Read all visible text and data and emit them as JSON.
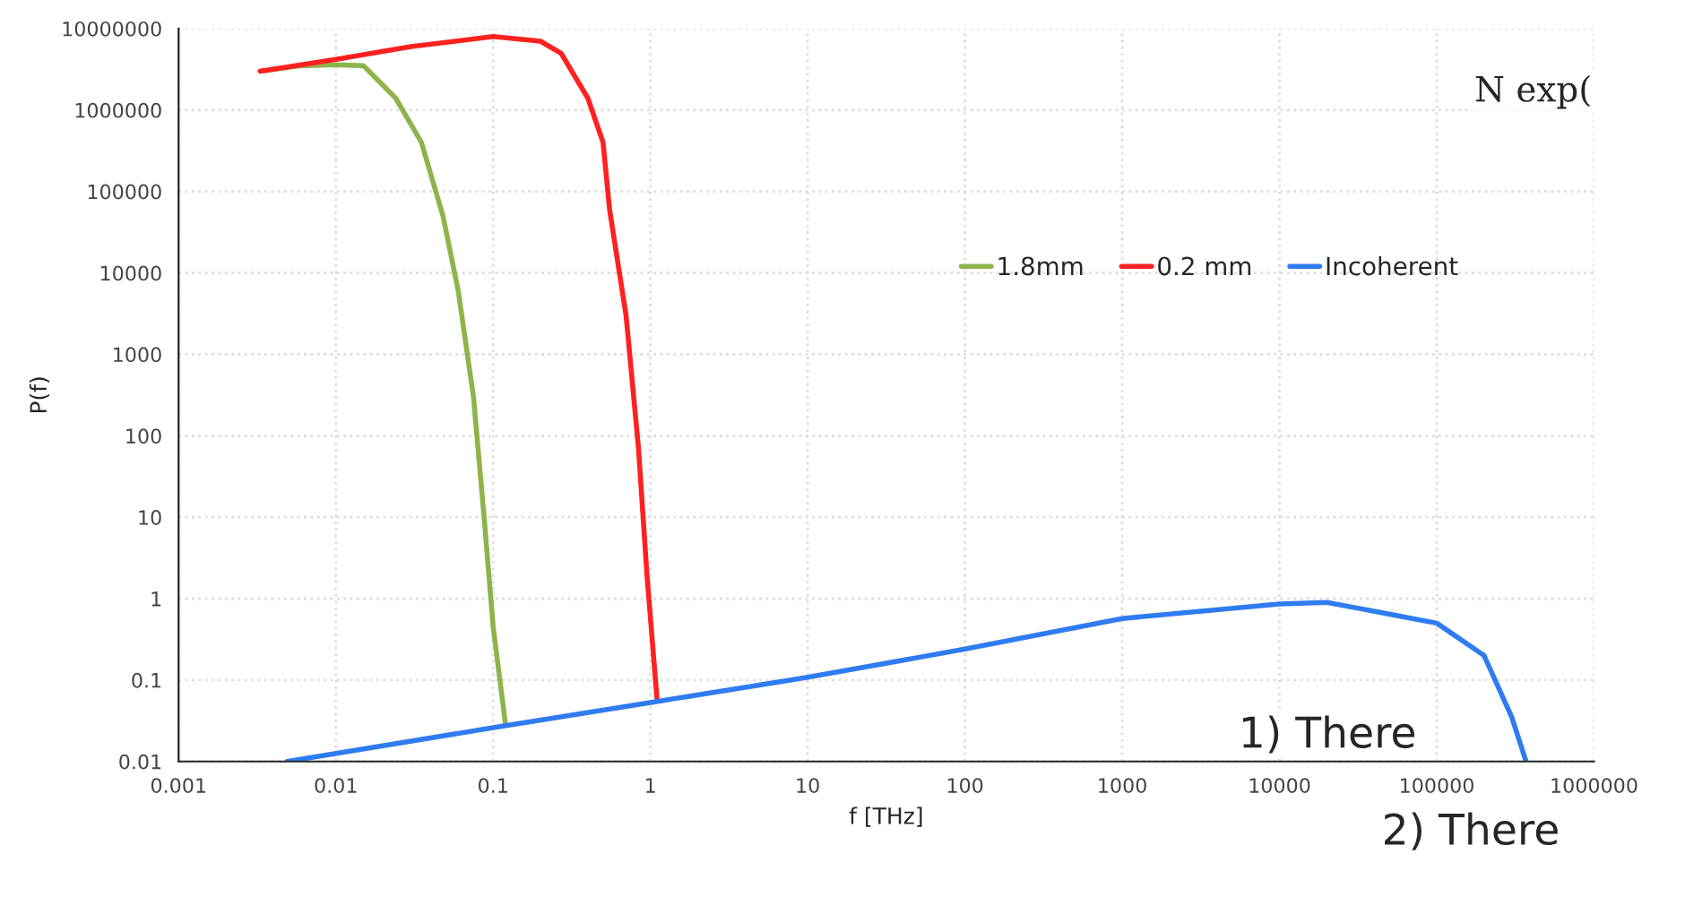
{
  "chart_data": {
    "type": "line",
    "xlabel": "f [THz]",
    "ylabel": "P(f)",
    "log": "xy",
    "xlim": [
      0.001,
      1000000
    ],
    "xticks": [
      0.001,
      0.01,
      0.1,
      1,
      10,
      100,
      1000,
      10000,
      100000,
      1000000
    ],
    "ylim": [
      0.01,
      10000000
    ],
    "yticks": [
      0.01,
      0.1,
      1,
      10,
      100,
      1000,
      10000,
      100000,
      1000000,
      10000000
    ],
    "grid": true,
    "legend": "top right",
    "marker": "none",
    "line_style": "solid",
    "series": [
      {
        "name": "1.8mm",
        "color": "#8db44a",
        "x": [
          0.0033,
          0.006,
          0.01,
          0.015,
          0.024,
          0.035,
          0.048,
          0.06,
          0.075,
          0.088,
          0.1,
          0.12
        ],
        "values": [
          3000000,
          3500000,
          3600000,
          3500000,
          1400000,
          400000,
          50000,
          6000,
          300,
          9,
          0.45,
          0.028
        ]
      },
      {
        "name": "0.2 mm",
        "color": "#ff2020",
        "x": [
          0.0033,
          0.01,
          0.03,
          0.1,
          0.2,
          0.27,
          0.4,
          0.5,
          0.55,
          0.7,
          0.84,
          0.95,
          1.1
        ],
        "values": [
          3000000,
          4200000,
          6000000,
          8000000,
          7000000,
          5000000,
          1400000,
          400000,
          60000,
          3000,
          70,
          2,
          0.06
        ]
      },
      {
        "name": "Incoherent",
        "color": "#2f7cf0",
        "x": [
          0.0049,
          0.1,
          1,
          10,
          100,
          1000,
          10000,
          20000,
          70000,
          100000,
          200000,
          300000,
          370000
        ],
        "values": [
          0.01,
          0.026,
          0.053,
          0.108,
          0.24,
          0.57,
          0.86,
          0.9,
          0.57,
          0.5,
          0.2,
          0.035,
          0.01
        ]
      }
    ],
    "annotations": [
      "N exp(",
      "1) There",
      "2) There"
    ]
  }
}
